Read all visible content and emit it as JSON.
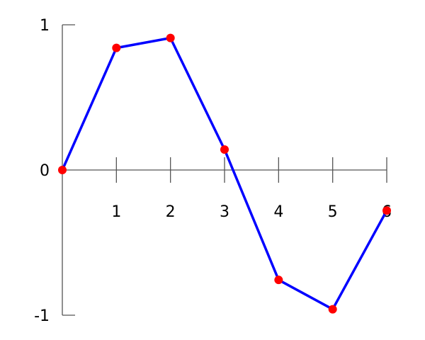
{
  "chart_data": {
    "type": "line",
    "title": "",
    "xlabel": "",
    "ylabel": "",
    "x": [
      0,
      1,
      2,
      3,
      4,
      5,
      6
    ],
    "series": [
      {
        "values": [
          0,
          0.841,
          0.909,
          0.141,
          -0.757,
          -0.959,
          -0.279
        ],
        "line_color": "#0000ff",
        "marker_color": "#ff0000"
      }
    ],
    "xlim": [
      0,
      6
    ],
    "ylim": [
      -1,
      1
    ],
    "x_ticks": [
      "1",
      "2",
      "3",
      "4",
      "5",
      "6"
    ],
    "y_ticks": [
      "1",
      "0",
      "-1"
    ],
    "grid": false,
    "axis_color": "#555555"
  }
}
